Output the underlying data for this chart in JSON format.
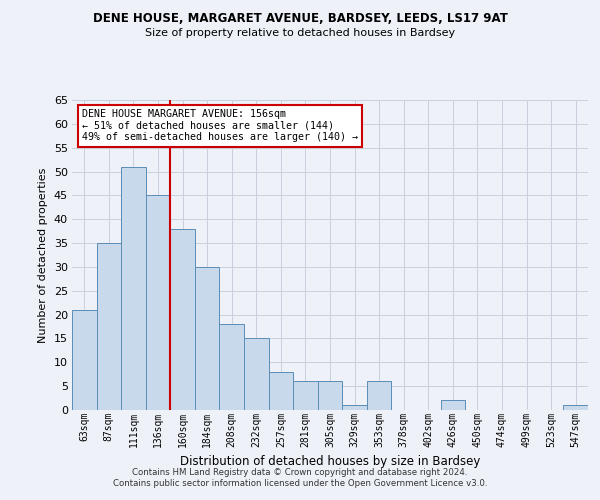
{
  "title1": "DENE HOUSE, MARGARET AVENUE, BARDSEY, LEEDS, LS17 9AT",
  "title2": "Size of property relative to detached houses in Bardsey",
  "xlabel": "Distribution of detached houses by size in Bardsey",
  "ylabel": "Number of detached properties",
  "categories": [
    "63sqm",
    "87sqm",
    "111sqm",
    "136sqm",
    "160sqm",
    "184sqm",
    "208sqm",
    "232sqm",
    "257sqm",
    "281sqm",
    "305sqm",
    "329sqm",
    "353sqm",
    "378sqm",
    "402sqm",
    "426sqm",
    "450sqm",
    "474sqm",
    "499sqm",
    "523sqm",
    "547sqm"
  ],
  "values": [
    21,
    35,
    51,
    45,
    38,
    30,
    18,
    15,
    8,
    6,
    6,
    1,
    6,
    0,
    0,
    2,
    0,
    0,
    0,
    0,
    1
  ],
  "bar_color": "#c9d9ec",
  "bar_edge_color": "#5b8db8",
  "vline_x": 3.5,
  "annotation_line1": "DENE HOUSE MARGARET AVENUE: 156sqm",
  "annotation_line2": "← 51% of detached houses are smaller (144)",
  "annotation_line3": "49% of semi-detached houses are larger (140) →",
  "annotation_box_color": "#ffffff",
  "annotation_box_edge": "#cc0000",
  "vline_color": "#cc0000",
  "ylim": [
    0,
    65
  ],
  "yticks": [
    0,
    5,
    10,
    15,
    20,
    25,
    30,
    35,
    40,
    45,
    50,
    55,
    60,
    65
  ],
  "footer1": "Contains HM Land Registry data © Crown copyright and database right 2024.",
  "footer2": "Contains public sector information licensed under the Open Government Licence v3.0.",
  "bg_color": "#eef2f8",
  "grid_color": "#c8d0de"
}
